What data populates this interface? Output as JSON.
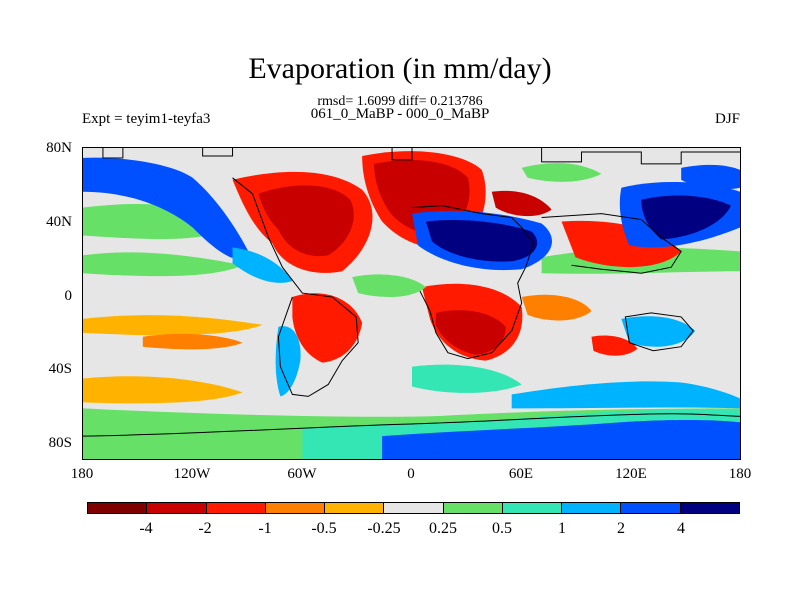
{
  "title": "Evaporation (in mm/day)",
  "stats": "rmsd= 1.6099 diff= 0.213786",
  "subtitle": "061_0_MaBP - 000_0_MaBP",
  "experiment": "Expt = teyim1-teyfa3",
  "season": "DJF",
  "axes": {
    "y_ticks": [
      "80N",
      "40N",
      "0",
      "40S",
      "80S"
    ],
    "x_ticks": [
      "180",
      "120W",
      "60W",
      "0",
      "60E",
      "120E",
      "180"
    ]
  },
  "colorbar": {
    "labels": [
      "-4",
      "-2",
      "-1",
      "-0.5",
      "-0.25",
      "0.25",
      "0.5",
      "1",
      "2",
      "4"
    ],
    "colors": [
      "#800000",
      "#c80000",
      "#ff1a00",
      "#ff7f00",
      "#ffb300",
      "#e6e6e6",
      "#66e066",
      "#33e6b3",
      "#00b3ff",
      "#0050ff",
      "#000080"
    ]
  },
  "map_colors": {
    "neutral": "#e6e6e6",
    "neg_strong": "#c80000",
    "neg_mid": "#ff1a00",
    "neg_weak": "#ff7f00",
    "neg_slight": "#ffb300",
    "pos_slight": "#66e066",
    "pos_weak": "#33e6b3",
    "pos_mid": "#00b3ff",
    "pos_strong": "#0050ff",
    "pos_max": "#000080",
    "coast": "#000000"
  }
}
